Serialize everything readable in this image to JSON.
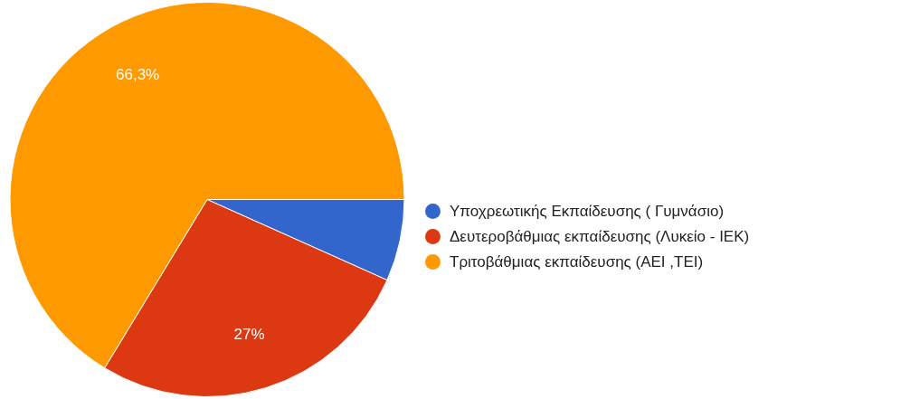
{
  "chart_data": {
    "type": "pie",
    "categories": [
      "Υποχρεωτικής Εκπαίδευσης ( Γυμνάσιο)",
      "Δευτεροβάθμιας εκπαίδευσης (Λυκείο - ΙΕΚ)",
      "Τριτοβάθμιας εκπαίδευσης (ΑΕΙ ,ΤΕΙ)"
    ],
    "values": [
      6.7,
      27,
      66.3
    ],
    "colors": [
      "#3366cc",
      "#dc3912",
      "#ff9900"
    ],
    "value_labels": [
      null,
      "27%",
      "66,3%"
    ],
    "legend": "right"
  }
}
